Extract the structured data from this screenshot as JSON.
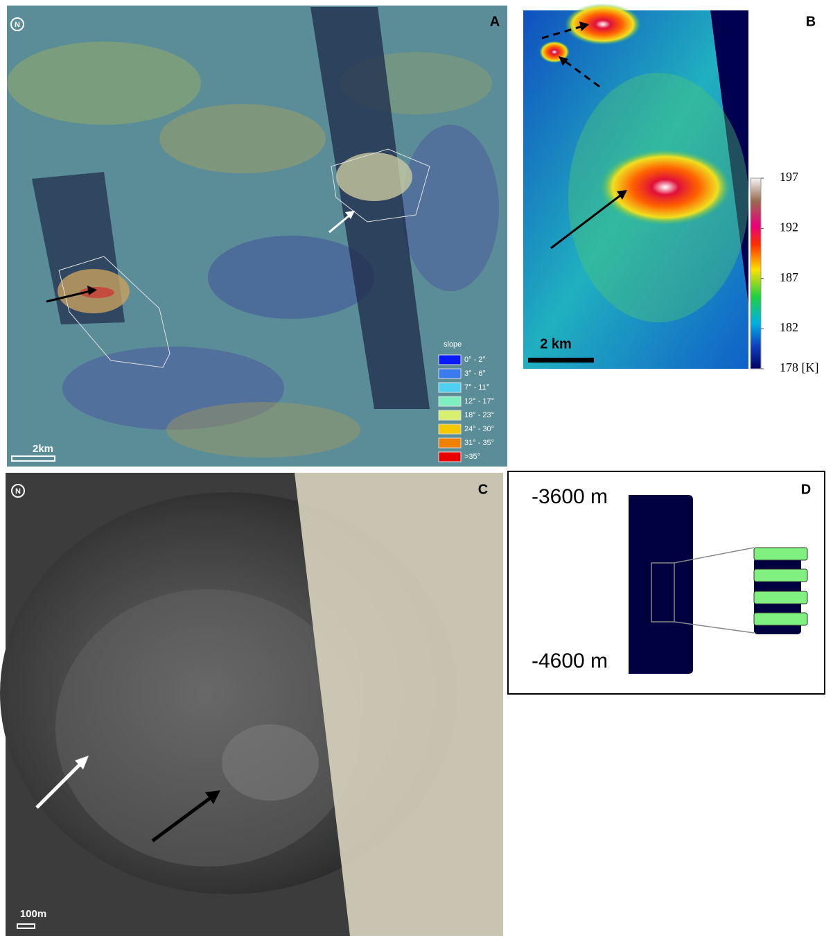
{
  "panels": {
    "a": {
      "label": "A",
      "scale": "2km",
      "legend": {
        "title": "slope",
        "items": [
          {
            "label": "0° - 2°",
            "color": "#0a1aff"
          },
          {
            "label": "3° - 6°",
            "color": "#3a7cf0"
          },
          {
            "label": "7° - 11°",
            "color": "#4fd0f0"
          },
          {
            "label": "12° - 17°",
            "color": "#7ef0c0"
          },
          {
            "label": "18° - 23°",
            "color": "#d8f070"
          },
          {
            "label": "24° - 30°",
            "color": "#f5c800"
          },
          {
            "label": "31° - 35°",
            "color": "#f08000"
          },
          {
            "label": ">35°",
            "color": "#e80000"
          }
        ]
      }
    },
    "b": {
      "label": "B",
      "scale": "2 km",
      "colorbar": {
        "clim": [
          178,
          197
        ],
        "ticks": [
          197,
          192,
          187,
          182,
          {
            "value": 178,
            "label": "178 [K]"
          }
        ]
      }
    },
    "c": {
      "label": "C",
      "scale": "100m"
    },
    "d": {
      "label": "D",
      "top_label": "-3600 m",
      "bottom_label": "-4600 m"
    }
  }
}
